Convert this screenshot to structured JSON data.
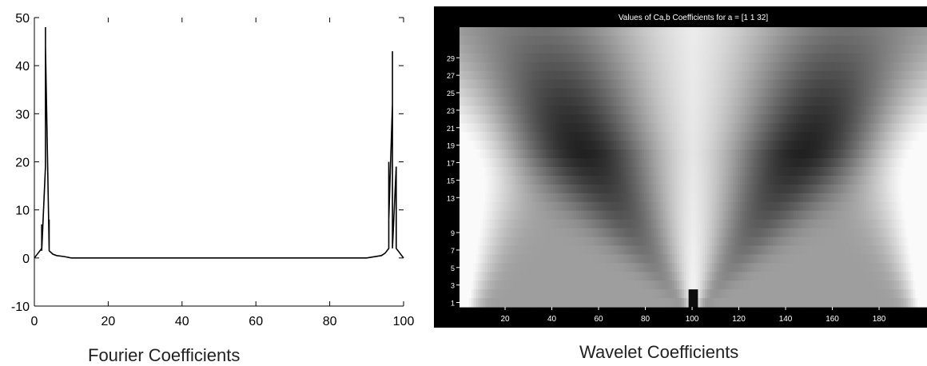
{
  "captions": {
    "fourier": "Fourier Coefficients",
    "wavelet": "Wavelet Coefficients"
  },
  "chart_data": [
    {
      "type": "line",
      "title": "",
      "xlabel": "",
      "ylabel": "",
      "xlim": [
        0,
        100
      ],
      "ylim": [
        -10,
        50
      ],
      "xticks": [
        0,
        20,
        40,
        60,
        80,
        100
      ],
      "yticks": [
        -10,
        0,
        10,
        20,
        30,
        40,
        50
      ],
      "grid": false,
      "color": "#000000",
      "series": [
        {
          "x": [
            0,
            1,
            2,
            2,
            2,
            3,
            3,
            3,
            3,
            3,
            4,
            4,
            4,
            4,
            5,
            6,
            8,
            10,
            14,
            20,
            40,
            60,
            80,
            86,
            90,
            94,
            95,
            96,
            96,
            96,
            96,
            97,
            97,
            97,
            97,
            97,
            97,
            98,
            98,
            98,
            99,
            100
          ],
          "y": [
            0,
            1,
            2,
            7,
            1.5,
            19,
            31,
            19,
            48,
            44,
            2,
            8,
            2,
            1.5,
            0.8,
            0.5,
            0.3,
            0,
            0,
            0,
            0,
            0,
            0,
            0,
            0,
            0.5,
            1,
            2,
            8,
            20,
            8,
            32,
            43,
            34,
            20,
            7,
            2,
            19,
            8,
            2,
            1,
            0
          ]
        }
      ]
    },
    {
      "type": "heatmap",
      "title": "Values of Ca,b Coefficients for a = [1 1 32]",
      "xlabel": "",
      "ylabel": "",
      "xlim": [
        1,
        200
      ],
      "xticks": [
        20,
        40,
        60,
        80,
        100,
        120,
        140,
        160,
        180
      ],
      "xtick_labels": [
        "20",
        "40",
        "60",
        "80",
        "100",
        "120",
        "140",
        "160",
        "180"
      ],
      "ytick_labels": [
        "29",
        "27",
        "25",
        "23",
        "21",
        "19",
        "17",
        "15",
        "13",
        "9",
        "7",
        "5",
        "3",
        "1"
      ],
      "ytick_values": [
        29,
        27,
        25,
        23,
        21,
        19,
        17,
        15,
        13,
        9,
        7,
        5,
        3,
        1
      ],
      "scales": [
        1,
        32
      ],
      "colormap": "gray"
    }
  ]
}
